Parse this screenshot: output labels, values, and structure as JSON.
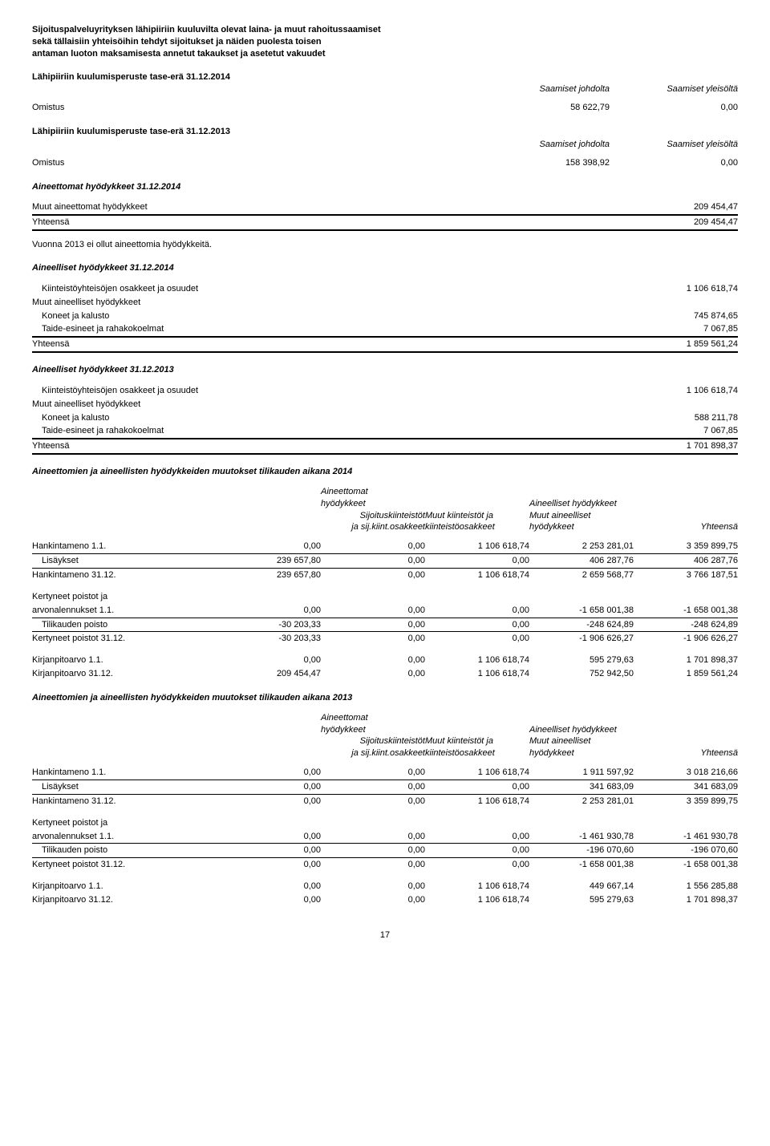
{
  "title_lines": [
    "Sijoituspalveluyrityksen lähipiiriin kuuluvilta olevat laina- ja muut rahoitussaamiset",
    "sekä tällaisiin yhteisöihin tehdyt sijoitukset ja näiden puolesta toisen",
    "antaman luoton maksamisesta annetut takaukset ja asetetut vakuudet"
  ],
  "lp1": {
    "heading": "Lähipiiriin kuulumisperuste tase-erä 31.12.2014",
    "h_col1": "Saamiset johdolta",
    "h_col2": "Saamiset yleisöltä",
    "row_label": "Omistus",
    "row_v1": "58 622,79",
    "row_v2": "0,00"
  },
  "lp2": {
    "heading": "Lähipiiriin kuulumisperuste tase-erä 31.12.2013",
    "h_col1": "Saamiset johdolta",
    "h_col2": "Saamiset yleisöltä",
    "row_label": "Omistus",
    "row_v1": "158 398,92",
    "row_v2": "0,00"
  },
  "aineettomat2014": {
    "heading": "Aineettomat hyödykkeet 31.12.2014",
    "row1_label": "Muut aineettomat hyödykkeet",
    "row1_val": "209 454,47",
    "total_label": "Yhteensä",
    "total_val": "209 454,47",
    "note": "Vuonna 2013 ei ollut aineettomia hyödykkeitä."
  },
  "aineelliset2014": {
    "heading": "Aineelliset hyödykkeet 31.12.2014",
    "r1": "Kiinteistöyhteisöjen osakkeet ja osuudet",
    "r1v": "1 106 618,74",
    "r2": "Muut aineelliset hyödykkeet",
    "r3": "Koneet ja kalusto",
    "r3v": "745 874,65",
    "r4": "Taide-esineet ja rahakokoelmat",
    "r4v": "7 067,85",
    "total_label": "Yhteensä",
    "total_val": "1 859 561,24"
  },
  "aineelliset2013": {
    "heading": "Aineelliset hyödykkeet 31.12.2013",
    "r1": "Kiinteistöyhteisöjen osakkeet ja osuudet",
    "r1v": "1 106 618,74",
    "r2": "Muut aineelliset hyödykkeet",
    "r3": "Koneet ja kalusto",
    "r3v": "588 211,78",
    "r4": "Taide-esineet ja rahakokoelmat",
    "r4v": "7 067,85",
    "total_label": "Yhteensä",
    "total_val": "1 701 898,37"
  },
  "changes2014": {
    "heading": "Aineettomien ja aineellisten hyödykkeiden muutokset tilikauden aikana 2014",
    "hgrp_left": "Aineettomat",
    "hgrp_left2": "hyödykkeet",
    "hgrp_right": "Aineelliset hyödykkeet",
    "c2a": "Sijoituskiinteistöt",
    "c2b": "ja sij.kiint.osakkeet",
    "c3a": "Muut kiinteistöt ja",
    "c3b": "kiinteistöosakkeet",
    "c4a": "Muut aineelliset",
    "c4b": "hyödykkeet",
    "c5": "Yhteensä",
    "rows": [
      {
        "l": "Hankintameno 1.1.",
        "v": [
          "0,00",
          "0,00",
          "1 106 618,74",
          "2 253 281,01",
          "3 359 899,75"
        ]
      },
      {
        "l": "Lisäykset",
        "v": [
          "239 657,80",
          "0,00",
          "0,00",
          "406 287,76",
          "406 287,76"
        ],
        "indent": true,
        "border": "thin-top"
      },
      {
        "l": "Hankintameno 31.12.",
        "v": [
          "239 657,80",
          "0,00",
          "1 106 618,74",
          "2 659 568,77",
          "3 766 187,51"
        ],
        "border": "thin-top"
      }
    ],
    "rows2": [
      {
        "l": "Kertyneet poistot ja"
      },
      {
        "l": "arvonalennukset 1.1.",
        "v": [
          "0,00",
          "0,00",
          "0,00",
          "-1 658 001,38",
          "-1 658 001,38"
        ]
      },
      {
        "l": "Tilikauden poisto",
        "v": [
          "-30 203,33",
          "0,00",
          "0,00",
          "-248 624,89",
          "-248 624,89"
        ],
        "indent": true,
        "border": "thin-top"
      },
      {
        "l": "Kertyneet poistot 31.12.",
        "v": [
          "-30 203,33",
          "0,00",
          "0,00",
          "-1 906 626,27",
          "-1 906 626,27"
        ],
        "border": "thin-top"
      }
    ],
    "rows3": [
      {
        "l": "Kirjanpitoarvo 1.1.",
        "v": [
          "0,00",
          "0,00",
          "1 106 618,74",
          "595 279,63",
          "1 701 898,37"
        ]
      },
      {
        "l": "Kirjanpitoarvo 31.12.",
        "v": [
          "209 454,47",
          "0,00",
          "1 106 618,74",
          "752 942,50",
          "1 859 561,24"
        ]
      }
    ]
  },
  "changes2013": {
    "heading": "Aineettomien ja aineellisten hyödykkeiden muutokset tilikauden aikana 2013",
    "rows": [
      {
        "l": "Hankintameno 1.1.",
        "v": [
          "0,00",
          "0,00",
          "1 106 618,74",
          "1 911 597,92",
          "3 018 216,66"
        ]
      },
      {
        "l": "Lisäykset",
        "v": [
          "0,00",
          "0,00",
          "0,00",
          "341 683,09",
          "341 683,09"
        ],
        "indent": true,
        "border": "thin-top"
      },
      {
        "l": "Hankintameno 31.12.",
        "v": [
          "0,00",
          "0,00",
          "1 106 618,74",
          "2 253 281,01",
          "3 359 899,75"
        ],
        "border": "thin-top"
      }
    ],
    "rows2": [
      {
        "l": "Kertyneet poistot ja"
      },
      {
        "l": "arvonalennukset 1.1.",
        "v": [
          "0,00",
          "0,00",
          "0,00",
          "-1 461 930,78",
          "-1 461 930,78"
        ]
      },
      {
        "l": "Tilikauden poisto",
        "v": [
          "0,00",
          "0,00",
          "0,00",
          "-196 070,60",
          "-196 070,60"
        ],
        "indent": true,
        "border": "thin-top"
      },
      {
        "l": "Kertyneet poistot 31.12.",
        "v": [
          "0,00",
          "0,00",
          "0,00",
          "-1 658 001,38",
          "-1 658 001,38"
        ],
        "border": "thin-top"
      }
    ],
    "rows3": [
      {
        "l": "Kirjanpitoarvo 1.1.",
        "v": [
          "0,00",
          "0,00",
          "1 106 618,74",
          "449 667,14",
          "1 556 285,88"
        ]
      },
      {
        "l": "Kirjanpitoarvo 31.12.",
        "v": [
          "0,00",
          "0,00",
          "1 106 618,74",
          "595 279,63",
          "1 701 898,37"
        ]
      }
    ]
  },
  "page_number": "17"
}
